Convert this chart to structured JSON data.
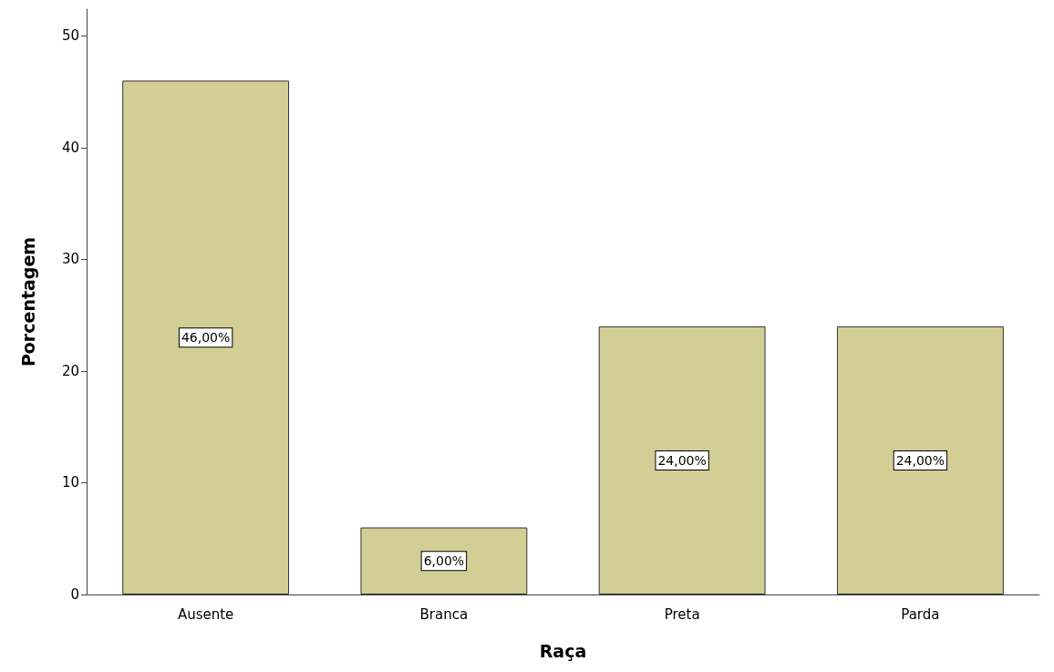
{
  "chart_data": {
    "type": "bar",
    "xlabel": "Raça",
    "ylabel": "Porcentagem",
    "categories": [
      "Ausente",
      "Branca",
      "Preta",
      "Parda"
    ],
    "values": [
      46,
      6,
      24,
      24
    ],
    "value_labels": [
      "46,00%",
      "6,00%",
      "24,00%",
      "24,00%"
    ],
    "color": "#d3ce96",
    "ylim": [
      0,
      52.4
    ],
    "yticks": [
      0,
      10,
      20,
      30,
      40,
      50
    ],
    "grid": false
  }
}
